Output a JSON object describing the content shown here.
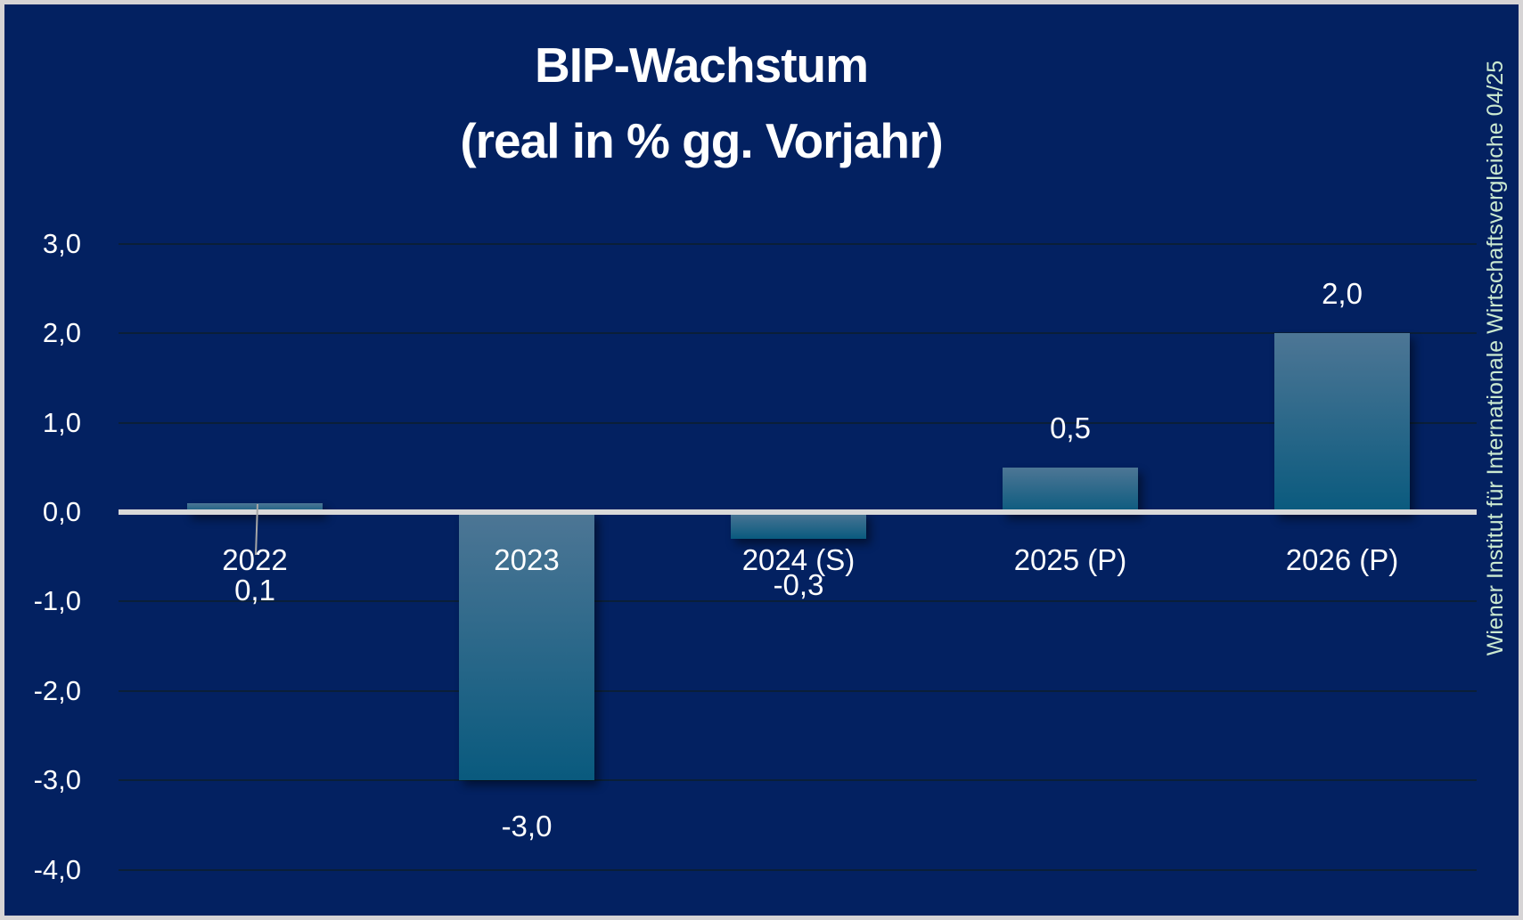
{
  "title": {
    "line1": "BIP-Wachstum",
    "line2": "(real in % gg. Vorjahr)"
  },
  "side_note": "Wiener Institut für Internationale Wirtschaftsvergleiche 04/25",
  "colors": {
    "background": "#032161",
    "frame_border": "#d6d4d5",
    "bar_gradient_top": "#4d7695",
    "bar_gradient_bottom": "#095a7e",
    "zero_axis": "#d9d9d9",
    "gridline": "#0a1f38",
    "leader_line": "#a6a6a6",
    "text": "#ffffff",
    "side_note_text": "#cbe9d0"
  },
  "chart_data": {
    "type": "bar",
    "title": "BIP-Wachstum (real in % gg. Vorjahr)",
    "categories": [
      "2022",
      "2023",
      "2024 (S)",
      "2025 (P)",
      "2026 (P)"
    ],
    "values": [
      0.1,
      -3.0,
      -0.3,
      0.5,
      2.0
    ],
    "value_labels": [
      "0,1",
      "-3,0",
      "-0,3",
      "0,5",
      "2,0"
    ],
    "series": [
      {
        "name": "BIP-Wachstum real in % gg. Vorjahr",
        "values": [
          0.1,
          -3.0,
          -0.3,
          0.5,
          2.0
        ]
      }
    ],
    "y_ticks": [
      {
        "value": 3,
        "label": "3,0"
      },
      {
        "value": 2,
        "label": "2,0"
      },
      {
        "value": 1,
        "label": "1,0"
      },
      {
        "value": 0,
        "label": "0,0"
      },
      {
        "value": -1,
        "label": "-1,0"
      },
      {
        "value": -2,
        "label": "-2,0"
      },
      {
        "value": -3,
        "label": "-3,0"
      },
      {
        "value": -4,
        "label": "-4,0"
      }
    ],
    "ylim": [
      -4,
      3
    ],
    "xlabel": "",
    "ylabel": "",
    "grid": "horizontal",
    "legend": "none",
    "decimal_separator": ","
  }
}
